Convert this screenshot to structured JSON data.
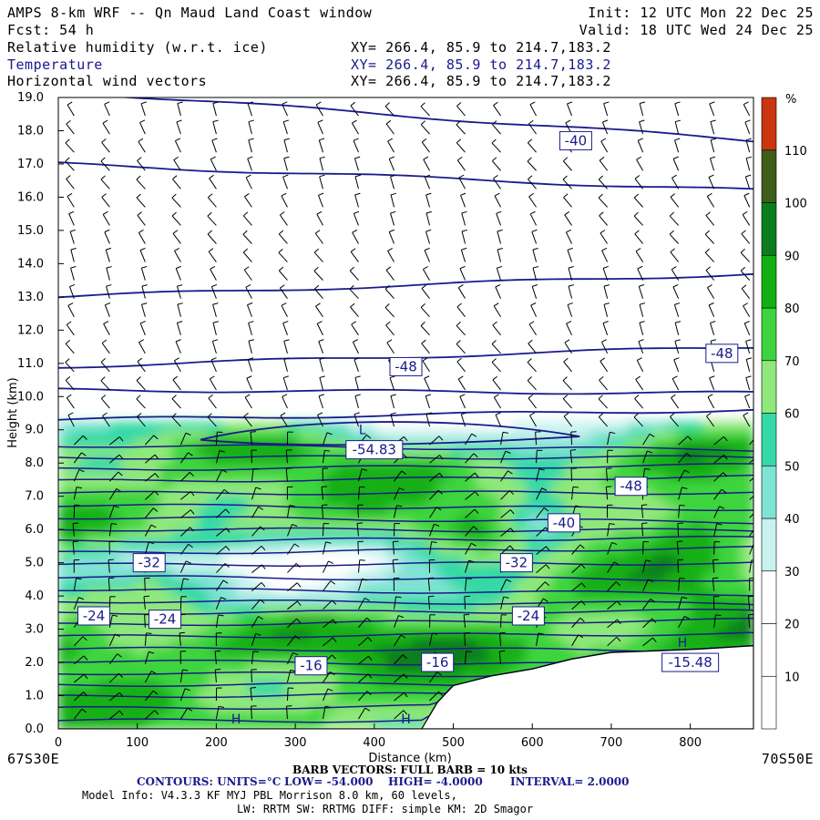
{
  "header": {
    "model": "AMPS 8-km WRF -- Qn Maud Land Coast window",
    "init": "Init: 12 UTC Mon 22 Dec 25",
    "fcst": "Fcst:    54 h",
    "valid": "Valid: 18 UTC Wed 24 Dec 25",
    "field1": "Relative humidity (w.r.t. ice)",
    "field2": "Temperature",
    "field3": "Horizontal wind vectors",
    "xy1": "XY= 266.4, 85.9 to 214.7,183.2",
    "xy2": "XY= 266.4, 85.9 to 214.7,183.2",
    "xy3": "XY= 266.4, 85.9 to 214.7,183.2"
  },
  "footer": {
    "left_point": "67S30E",
    "right_point": "70S50E",
    "barb": "BARB VECTORS:  FULL BARB = 10 kts",
    "contours_a": "CONTOURS:  UNITS=°C",
    "contours_b": "LOW= -54.000",
    "contours_c": "HIGH= -4.0000",
    "contours_d": "INTERVAL=   2.0000",
    "model_info": "Model Info: V4.3.3    KF     MYJ PBL  Morrison          8.0 km,  60 levels,",
    "model_info2": "LW: RRTM SW: RRTMG   DIFF: simple KM: 2D Smagor"
  },
  "chart_data": {
    "type": "heatmap",
    "xlabel": "Distance (km)",
    "ylabel": "Height (km)",
    "xlim": [
      0,
      880
    ],
    "ylim": [
      0,
      19
    ],
    "x_ticks": [
      "0",
      "100",
      "200",
      "300",
      "400",
      "500",
      "600",
      "700",
      "800"
    ],
    "y_ticks": [
      "0.0",
      "1.0",
      "2.0",
      "3.0",
      "4.0",
      "5.0",
      "6.0",
      "7.0",
      "8.0",
      "9.0",
      "10.0",
      "11.0",
      "12.0",
      "13.0",
      "14.0",
      "15.0",
      "16.0",
      "17.0",
      "18.0",
      "19.0"
    ],
    "colorbar": {
      "unit": "%",
      "labels": [
        "10",
        "20",
        "30",
        "40",
        "50",
        "60",
        "70",
        "80",
        "90",
        "100",
        "110"
      ],
      "bands": [
        {
          "from": 0,
          "to": 10,
          "color": "#ffffff"
        },
        {
          "from": 10,
          "to": 20,
          "color": "#ffffff"
        },
        {
          "from": 20,
          "to": 30,
          "color": "#ffffff"
        },
        {
          "from": 30,
          "to": 40,
          "color": "#c8f2ee"
        },
        {
          "from": 40,
          "to": 50,
          "color": "#7fe3d3"
        },
        {
          "from": 50,
          "to": 60,
          "color": "#34d9a6"
        },
        {
          "from": 60,
          "to": 70,
          "color": "#8fe87a"
        },
        {
          "from": 70,
          "to": 80,
          "color": "#3ed43e"
        },
        {
          "from": 80,
          "to": 90,
          "color": "#12b012"
        },
        {
          "from": 90,
          "to": 100,
          "color": "#0a7d1e"
        },
        {
          "from": 100,
          "to": 110,
          "color": "#3e5e1a"
        },
        {
          "from": 110,
          "to": 120,
          "color": "#c8350f"
        }
      ]
    },
    "contour_labels": [
      {
        "text": "-40",
        "x": 655,
        "y": 17.7
      },
      {
        "text": "-48",
        "x": 440,
        "y": 10.9
      },
      {
        "text": "-48",
        "x": 840,
        "y": 11.3
      },
      {
        "text": "-54.83",
        "x": 400,
        "y": 8.4
      },
      {
        "text": "-48",
        "x": 725,
        "y": 7.3
      },
      {
        "text": "-40",
        "x": 640,
        "y": 6.2
      },
      {
        "text": "-32",
        "x": 115,
        "y": 5.0
      },
      {
        "text": "-32",
        "x": 580,
        "y": 5.0
      },
      {
        "text": "-24",
        "x": 45,
        "y": 3.4
      },
      {
        "text": "-24",
        "x": 135,
        "y": 3.3
      },
      {
        "text": "-24",
        "x": 595,
        "y": 3.4
      },
      {
        "text": "-16",
        "x": 320,
        "y": 1.9
      },
      {
        "text": "-16",
        "x": 480,
        "y": 2.0
      },
      {
        "text": "-15.48",
        "x": 800,
        "y": 2.0
      }
    ],
    "markers": [
      {
        "text": "L",
        "x": 385,
        "y": 9.0
      },
      {
        "text": "H",
        "x": 225,
        "y": 0.3
      },
      {
        "text": "H",
        "x": 440,
        "y": 0.3
      },
      {
        "text": "H",
        "x": 790,
        "y": 2.6
      }
    ],
    "terrain": [
      [
        0,
        0
      ],
      [
        460,
        0
      ],
      [
        480,
        0.8
      ],
      [
        500,
        1.3
      ],
      [
        550,
        1.6
      ],
      [
        600,
        1.8
      ],
      [
        650,
        2.1
      ],
      [
        700,
        2.3
      ],
      [
        760,
        2.35
      ],
      [
        810,
        2.4
      ],
      [
        880,
        2.5
      ]
    ]
  }
}
